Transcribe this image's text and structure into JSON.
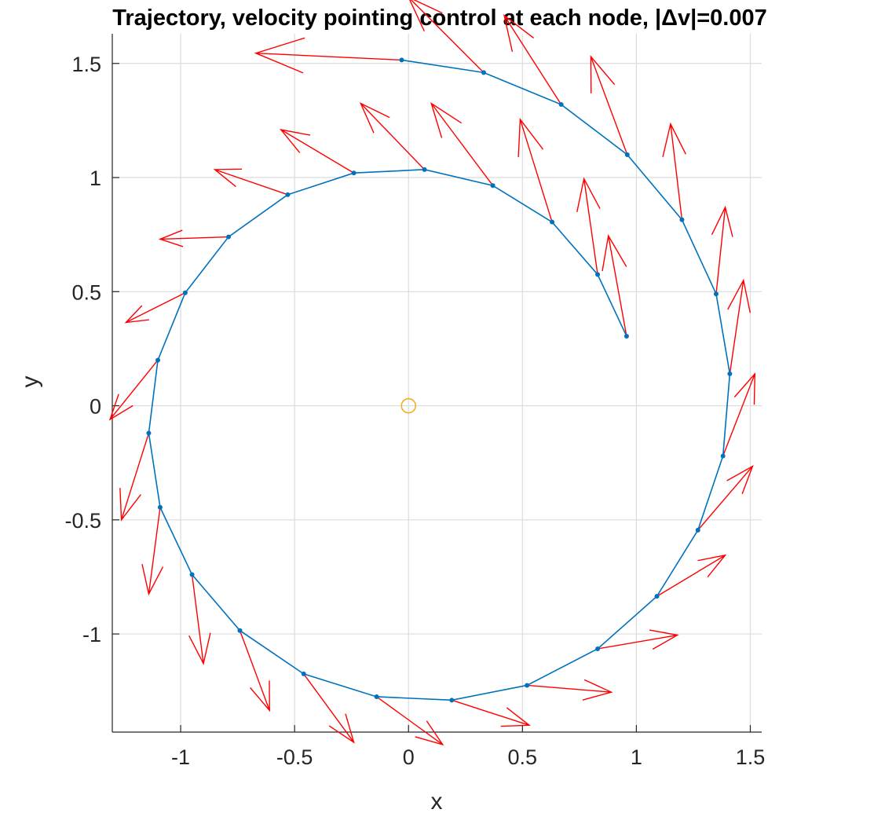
{
  "chart_data": {
    "type": "scatter",
    "title": "Trajectory, velocity pointing control at each node, |Δv|=0.007",
    "xlabel": "x",
    "ylabel": "y",
    "xlim": [
      -1.3,
      1.55
    ],
    "ylim": [
      -1.43,
      1.63
    ],
    "xticks": [
      -1,
      -0.5,
      0,
      0.5,
      1,
      1.5
    ],
    "xtick_labels": [
      "-1",
      "-0.5",
      "0",
      "0.5",
      "1",
      "1.5"
    ],
    "yticks": [
      -1,
      -0.5,
      0,
      0.5,
      1,
      1.5
    ],
    "ytick_labels": [
      "-1",
      "-0.5",
      "0",
      "0.5",
      "1",
      "1.5"
    ],
    "grid": true,
    "colors": {
      "trajectory": "#0072BD",
      "control": "#FF0000",
      "central_body": "#EDB120"
    },
    "central_body": {
      "x": 0,
      "y": 0
    },
    "trajectory": {
      "x": [
        0.957,
        0.83,
        0.63,
        0.37,
        0.07,
        -0.24,
        -0.53,
        -0.79,
        -0.98,
        -1.1,
        -1.14,
        -1.09,
        -0.95,
        -0.74,
        -0.46,
        -0.14,
        0.19,
        0.52,
        0.83,
        1.09,
        1.27,
        1.38,
        1.41,
        1.35,
        1.2,
        0.96,
        0.67,
        0.33,
        -0.03
      ],
      "y": [
        0.305,
        0.575,
        0.805,
        0.965,
        1.035,
        1.02,
        0.925,
        0.74,
        0.495,
        0.2,
        -0.12,
        -0.445,
        -0.74,
        -0.985,
        -1.175,
        -1.275,
        -1.29,
        -1.225,
        -1.065,
        -0.835,
        -0.545,
        -0.22,
        0.14,
        0.49,
        0.815,
        1.1,
        1.32,
        1.46,
        1.515
      ]
    },
    "control_vectors": {
      "u": [
        -0.08,
        -0.06,
        -0.14,
        -0.27,
        -0.28,
        -0.32,
        -0.32,
        -0.3,
        -0.26,
        -0.21,
        -0.12,
        -0.05,
        0.05,
        0.13,
        0.22,
        0.29,
        0.34,
        0.37,
        0.35,
        0.3,
        0.24,
        0.14,
        0.06,
        0.04,
        -0.05,
        -0.16,
        -0.25,
        -0.33,
        -0.64
      ],
      "v": [
        0.44,
        0.42,
        0.45,
        0.36,
        0.29,
        0.19,
        0.11,
        -0.01,
        -0.13,
        -0.26,
        -0.38,
        -0.38,
        -0.39,
        -0.35,
        -0.3,
        -0.21,
        -0.11,
        -0.03,
        0.06,
        0.18,
        0.28,
        0.36,
        0.41,
        0.38,
        0.42,
        0.43,
        0.39,
        0.33,
        0.03
      ]
    }
  }
}
